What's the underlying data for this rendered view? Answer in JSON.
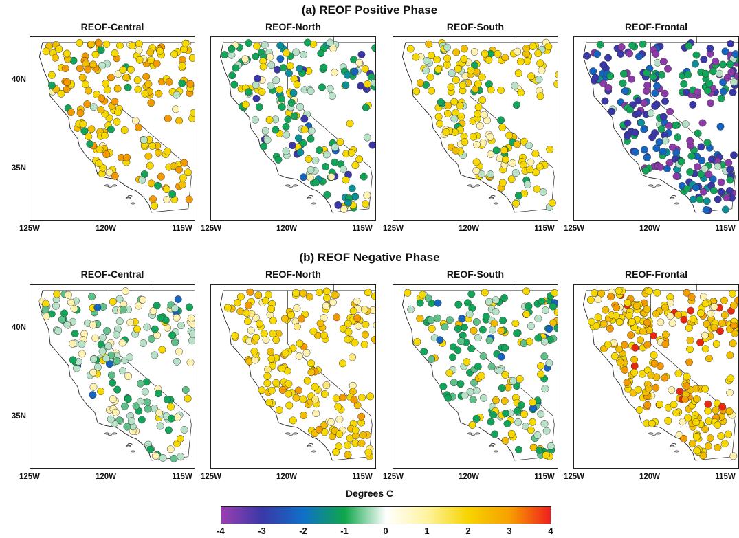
{
  "rows": [
    {
      "title": "(a) REOF Positive Phase",
      "panels": [
        {
          "title": "REOF-Central",
          "mode": "central_pos"
        },
        {
          "title": "REOF-North",
          "mode": "north_pos"
        },
        {
          "title": "REOF-South",
          "mode": "south_pos"
        },
        {
          "title": "REOF-Frontal",
          "mode": "frontal_pos"
        }
      ]
    },
    {
      "title": "(b) REOF Negative Phase",
      "panels": [
        {
          "title": "REOF-Central",
          "mode": "central_neg"
        },
        {
          "title": "REOF-North",
          "mode": "north_neg"
        },
        {
          "title": "REOF-South",
          "mode": "south_neg"
        },
        {
          "title": "REOF-Frontal",
          "mode": "frontal_neg"
        }
      ]
    }
  ],
  "x_ticks": [
    "125W",
    "120W",
    "115W"
  ],
  "y_ticks": [
    "40N",
    "35N"
  ],
  "colorbar": {
    "title": "Degrees C",
    "ticks": [
      "-4",
      "-3",
      "-2",
      "-1",
      "0",
      "1",
      "2",
      "3",
      "4"
    ],
    "colors": [
      "#9b3fb0",
      "#3a38a8",
      "#0f70c8",
      "#0fa64a",
      "#ffffff",
      "#fff3a0",
      "#f6d400",
      "#f7a000",
      "#f01e1e"
    ]
  },
  "map": {
    "lon_range": [
      -125,
      -114.2
    ],
    "lat_range": [
      32,
      42.3
    ]
  }
}
